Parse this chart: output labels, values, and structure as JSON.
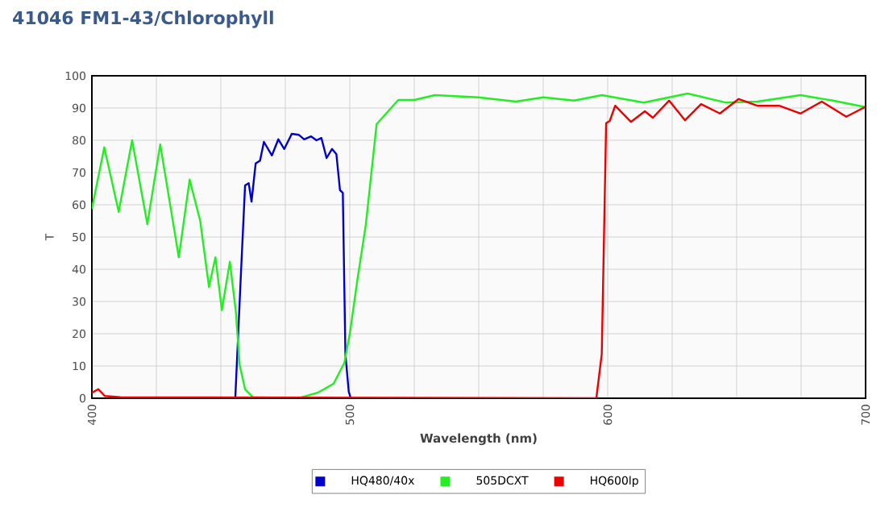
{
  "chart_data": {
    "type": "line",
    "title": "41046 FM1-43/Chlorophyll",
    "xlabel": "Wavelength (nm)",
    "ylabel": "T",
    "xlim": [
      400,
      700
    ],
    "ylim": [
      0,
      100
    ],
    "xticks": [
      400,
      {
        "value": 425,
        "label": null
      },
      {
        "value": 450,
        "label": null
      },
      {
        "value": 475,
        "label": null
      },
      500,
      {
        "value": 525,
        "label": null
      },
      {
        "value": 550,
        "label": null
      },
      {
        "value": 575,
        "label": null
      },
      600,
      {
        "value": 625,
        "label": null
      },
      {
        "value": 650,
        "label": null
      },
      {
        "value": 675,
        "label": null
      },
      700
    ],
    "yticks": [
      0,
      10,
      20,
      30,
      40,
      50,
      60,
      70,
      80,
      90,
      100
    ],
    "grid": true,
    "legend": "bottom",
    "marker": "none",
    "line_style": "solid",
    "series": [
      {
        "name": "HQ480/40x",
        "color": "#0000cc",
        "x": [
          455.6,
          457.7,
          459.4,
          460.8,
          461.9,
          463.5,
          465.2,
          466.7,
          469.8,
          472.3,
          474.6,
          477.5,
          480.2,
          482.3,
          485,
          487.1,
          489,
          491,
          493.1,
          494.8,
          496.2,
          497.3,
          498.3,
          499.6,
          500.4
        ],
        "values": [
          0,
          37,
          66,
          66.7,
          61,
          72.8,
          73.7,
          79.5,
          75.3,
          80.3,
          77.3,
          82,
          81.7,
          80.3,
          81.2,
          80,
          80.7,
          74.5,
          77.3,
          75.7,
          64.5,
          63.7,
          13.7,
          2,
          0
        ]
      },
      {
        "name": "505DCXT",
        "color": "#22ee22",
        "x": [
          400,
          404.8,
          410.4,
          415.6,
          421.5,
          426.5,
          433.7,
          437.9,
          442,
          445.4,
          447.9,
          450.4,
          453.5,
          455.8,
          457.3,
          459.4,
          462.5,
          480,
          487.5,
          493.7,
          497.9,
          500,
          503,
          506.2,
          510.4,
          518.8,
          525,
          533,
          549.8,
          564.4,
          575,
          587,
          597.7,
          614,
          631,
          645.6,
          658,
          674.8,
          687.3,
          699.8
        ],
        "values": [
          58.7,
          77.8,
          57.8,
          80,
          54,
          78.7,
          43.7,
          67.8,
          55,
          34.5,
          43.7,
          27.3,
          42.3,
          27,
          10.3,
          2.8,
          0.3,
          0,
          1.7,
          4.5,
          11,
          20,
          37,
          53.7,
          85,
          92.5,
          92.5,
          94,
          93.3,
          92,
          93.3,
          92.3,
          94,
          91.7,
          94.5,
          91.7,
          92,
          94,
          92.3,
          90.3
        ]
      },
      {
        "name": "HQ600lp",
        "color": "#ee0000",
        "x": [
          400,
          402.5,
          405,
          411,
          595.6,
          597.7,
          599.4,
          600.8,
          602.9,
          609,
          614.4,
          617.5,
          623.8,
          630,
          636.2,
          643.5,
          650.8,
          658,
          666.5,
          674.8,
          683,
          692.5,
          699.8
        ],
        "values": [
          1.7,
          2.8,
          0.7,
          0.3,
          0,
          13.7,
          85.3,
          86,
          90.7,
          85.7,
          89,
          87,
          92.3,
          86.2,
          91.2,
          88.3,
          92.8,
          90.7,
          90.7,
          88.3,
          92,
          87.3,
          90.3
        ]
      }
    ]
  }
}
